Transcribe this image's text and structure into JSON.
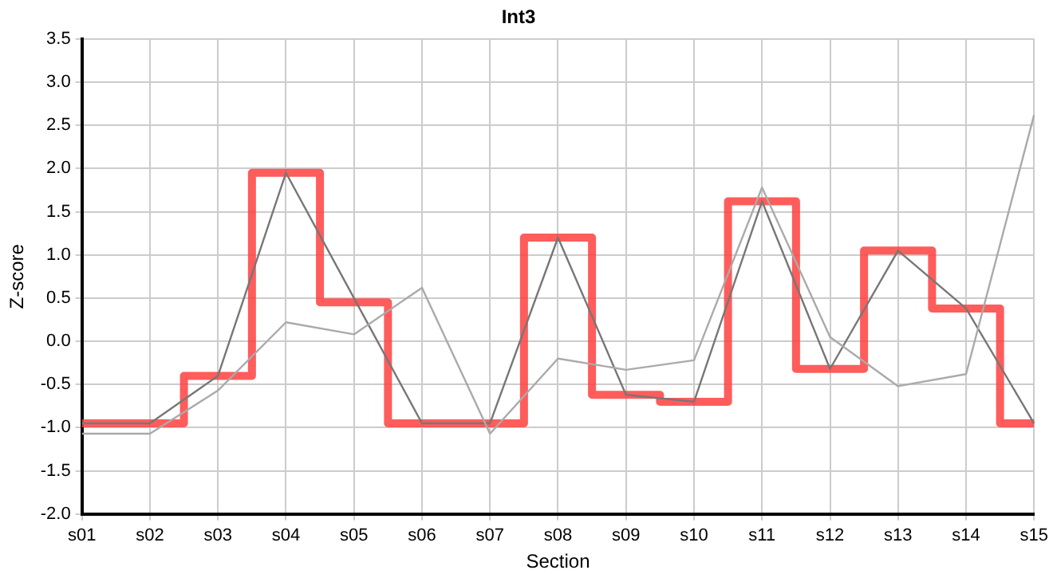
{
  "chart_data": {
    "type": "line",
    "title": "Int3",
    "xlabel": "Section",
    "ylabel": "Z-score",
    "categories": [
      "s01",
      "s02",
      "s03",
      "s04",
      "s05",
      "s06",
      "s07",
      "s08",
      "s09",
      "s10",
      "s11",
      "s12",
      "s13",
      "s14",
      "s15"
    ],
    "series": [
      {
        "type": "line",
        "color": "#aaaaaa",
        "values": [
          -1.07,
          -1.07,
          -0.57,
          0.22,
          0.08,
          0.62,
          -1.07,
          -0.2,
          -0.33,
          -0.22,
          1.78,
          0.05,
          -0.52,
          -0.38,
          2.62
        ]
      },
      {
        "type": "line",
        "color": "#777777",
        "values": [
          -0.95,
          -0.95,
          -0.4,
          1.95,
          0.5,
          -0.95,
          -0.95,
          1.2,
          -0.62,
          -0.7,
          1.62,
          -0.32,
          1.05,
          0.38,
          -0.95
        ]
      },
      {
        "type": "step",
        "color": "#ff4040",
        "values": [
          -0.95,
          -0.95,
          -0.4,
          1.95,
          0.45,
          -0.95,
          -0.95,
          1.2,
          -0.62,
          -0.7,
          1.62,
          -0.32,
          1.05,
          0.38,
          -0.95
        ]
      }
    ],
    "ylim": [
      -2,
      3.5
    ],
    "yticks": [
      {
        "value": -2,
        "label": "-2.0"
      },
      -1.5,
      {
        "value": -1,
        "label": "-1.0"
      },
      -0.5,
      {
        "value": 0,
        "label": "0.0"
      },
      0.5,
      {
        "value": 1,
        "label": "1.0"
      },
      1.5,
      {
        "value": 2,
        "label": "2.0"
      },
      2.5,
      {
        "value": 3,
        "label": "3.0"
      },
      3.5
    ],
    "grid": true,
    "legend": false,
    "marker": "none"
  }
}
